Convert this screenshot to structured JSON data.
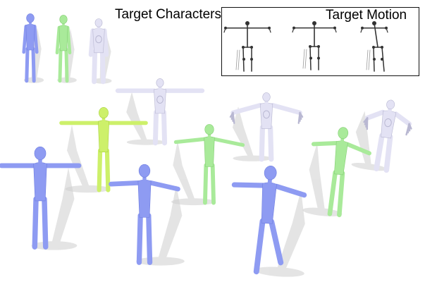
{
  "header": {
    "characters_label": "Target Characters",
    "motion_label": "Target Motion"
  },
  "palette": {
    "blue": "#8e9bf2",
    "blue_dark": "#6f7ee0",
    "green": "#a9ea9a",
    "green_dark": "#84cf74",
    "lime": "#cdf06a",
    "lime_dark": "#a9d23f",
    "lavender": "#e3e2f4",
    "lavender_dark": "#b9b8d2",
    "shadow": "#cfcfcf",
    "skeleton": "#333333"
  },
  "figures": [
    {
      "name": "reference-blue-character",
      "kind": "character",
      "color": "blue"
    },
    {
      "name": "reference-green-character",
      "kind": "character",
      "color": "green"
    },
    {
      "name": "reference-lavender-creature",
      "kind": "creature",
      "color": "lavender"
    },
    {
      "name": "motion-skeleton-1",
      "kind": "skeleton"
    },
    {
      "name": "motion-skeleton-2",
      "kind": "skeleton"
    },
    {
      "name": "motion-skeleton-3",
      "kind": "skeleton"
    },
    {
      "name": "retarget-lavender-creature-tpose",
      "kind": "creature",
      "color": "lavender"
    },
    {
      "name": "retarget-lime-character-tpose",
      "kind": "character",
      "color": "lime"
    },
    {
      "name": "retarget-blue-character-tpose",
      "kind": "character",
      "color": "blue"
    },
    {
      "name": "retarget-lavender-creature-wings",
      "kind": "creature",
      "color": "lavender"
    },
    {
      "name": "retarget-green-character-arms-out",
      "kind": "character",
      "color": "green"
    },
    {
      "name": "retarget-blue-character-arms-raised",
      "kind": "character",
      "color": "blue"
    },
    {
      "name": "retarget-lavender-creature-leaning",
      "kind": "creature",
      "color": "lavender"
    },
    {
      "name": "retarget-green-character-leaning",
      "kind": "character",
      "color": "green"
    },
    {
      "name": "retarget-blue-character-striding",
      "kind": "character",
      "color": "blue"
    }
  ]
}
